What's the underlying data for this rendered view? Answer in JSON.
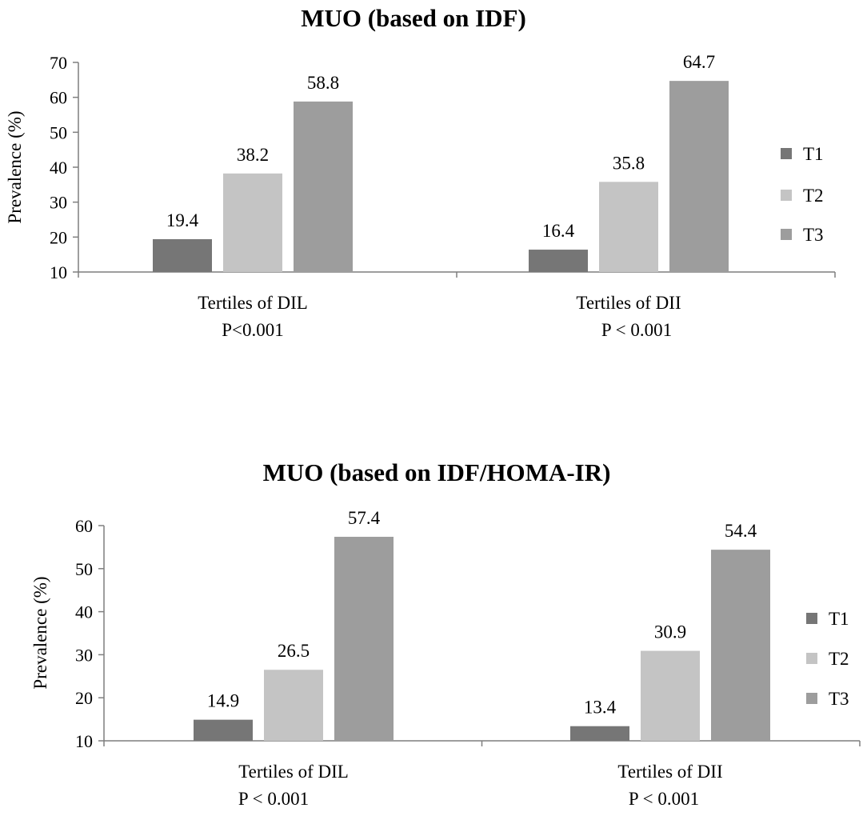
{
  "chart_data": [
    {
      "type": "bar",
      "title": "MUO (based on IDF)",
      "ylabel": "Prevalence (%)",
      "xlabel": "",
      "ylim": [
        10,
        70
      ],
      "yticks": [
        10,
        20,
        30,
        40,
        50,
        60,
        70
      ],
      "categories": [
        "Tertiles of DIL",
        "Tertiles of DII"
      ],
      "pvalues": [
        "P<0.001",
        "P < 0.001"
      ],
      "legend_position": "right",
      "grid": false,
      "series": [
        {
          "name": "T1",
          "color": "#767676",
          "values": [
            19.4,
            16.4
          ],
          "labels": [
            "19.4",
            "16.4"
          ]
        },
        {
          "name": "T2",
          "color": "#c4c4c4",
          "values": [
            38.2,
            35.8
          ],
          "labels": [
            "38.2",
            "35.8"
          ]
        },
        {
          "name": "T3",
          "color": "#9d9d9d",
          "values": [
            58.8,
            64.7
          ],
          "labels": [
            "58.8",
            "64.7"
          ]
        }
      ]
    },
    {
      "type": "bar",
      "title": "MUO (based on IDF/HOMA-IR)",
      "ylabel": "Prevalence (%)",
      "xlabel": "",
      "ylim": [
        10,
        60
      ],
      "yticks": [
        10,
        20,
        30,
        40,
        50,
        60
      ],
      "categories": [
        "Tertiles of DIL",
        "Tertiles of DII"
      ],
      "pvalues": [
        "P < 0.001",
        "P < 0.001"
      ],
      "legend_position": "right",
      "grid": false,
      "series": [
        {
          "name": "T1",
          "color": "#767676",
          "values": [
            14.9,
            13.4
          ],
          "labels": [
            "14.9",
            "13.4"
          ]
        },
        {
          "name": "T2",
          "color": "#c4c4c4",
          "values": [
            26.5,
            30.9
          ],
          "labels": [
            "26.5",
            "30.9"
          ]
        },
        {
          "name": "T3",
          "color": "#9d9d9d",
          "values": [
            57.4,
            54.4
          ],
          "labels": [
            "57.4",
            "54.4"
          ]
        }
      ]
    }
  ]
}
